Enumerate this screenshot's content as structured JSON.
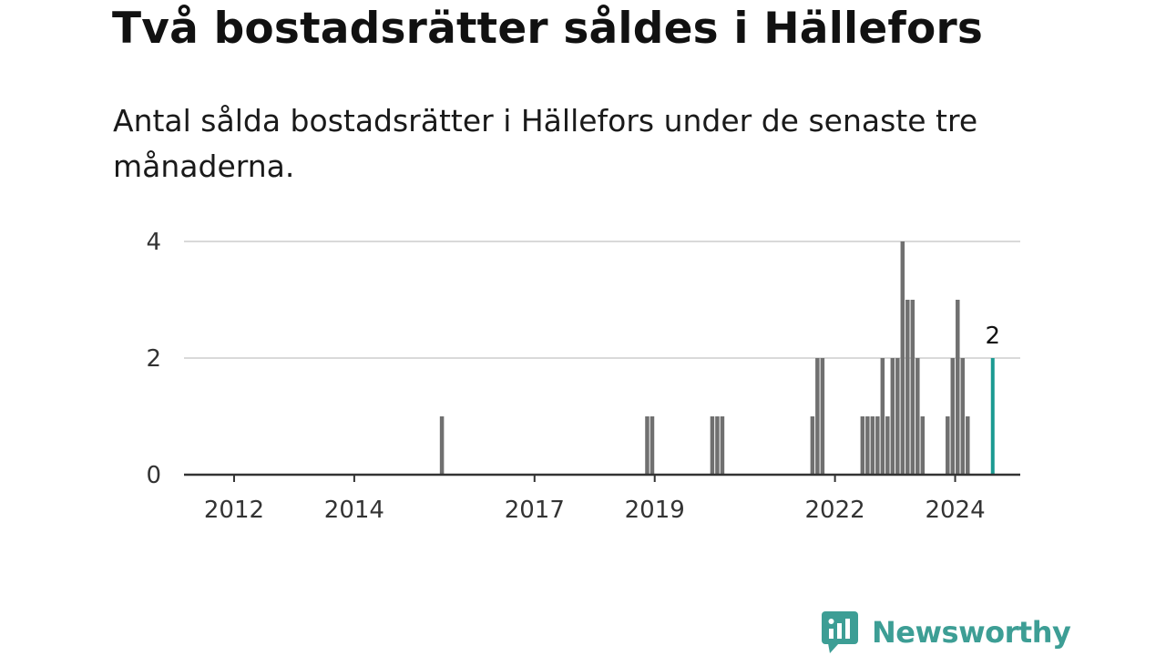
{
  "title": "Två bostadsrätter såldes i Hällefors",
  "subtitle": "Antal sålda bostadsrätter i Hällefors under de senaste tre månaderna.",
  "brand": {
    "name": "Newsworthy",
    "color": "#3d9e95"
  },
  "chart_data": {
    "type": "bar",
    "x_unit": "month",
    "x_range": [
      "2011-03",
      "2025-02"
    ],
    "y_range": [
      0,
      4
    ],
    "y_ticks": [
      0,
      2,
      4
    ],
    "x_ticks": [
      "2012",
      "2014",
      "2017",
      "2019",
      "2022",
      "2024"
    ],
    "grid": true,
    "bar_color": "#707070",
    "highlight_color": "#1b9a92",
    "bars": [
      {
        "month": "2015-06",
        "value": 1
      },
      {
        "month": "2018-11",
        "value": 1
      },
      {
        "month": "2018-12",
        "value": 1
      },
      {
        "month": "2019-12",
        "value": 1
      },
      {
        "month": "2020-01",
        "value": 1
      },
      {
        "month": "2020-02",
        "value": 1
      },
      {
        "month": "2021-08",
        "value": 1
      },
      {
        "month": "2021-09",
        "value": 2
      },
      {
        "month": "2021-10",
        "value": 2
      },
      {
        "month": "2022-06",
        "value": 1
      },
      {
        "month": "2022-07",
        "value": 1
      },
      {
        "month": "2022-08",
        "value": 1
      },
      {
        "month": "2022-09",
        "value": 1
      },
      {
        "month": "2022-10",
        "value": 2
      },
      {
        "month": "2022-11",
        "value": 1
      },
      {
        "month": "2022-12",
        "value": 2
      },
      {
        "month": "2023-01",
        "value": 2
      },
      {
        "month": "2023-02",
        "value": 4
      },
      {
        "month": "2023-03",
        "value": 3
      },
      {
        "month": "2023-04",
        "value": 3
      },
      {
        "month": "2023-05",
        "value": 2
      },
      {
        "month": "2023-06",
        "value": 1
      },
      {
        "month": "2023-11",
        "value": 1
      },
      {
        "month": "2023-12",
        "value": 2
      },
      {
        "month": "2024-01",
        "value": 3
      },
      {
        "month": "2024-02",
        "value": 2
      },
      {
        "month": "2024-03",
        "value": 1
      },
      {
        "month": "2024-08",
        "value": 2,
        "highlight": true,
        "label": "2"
      }
    ]
  }
}
